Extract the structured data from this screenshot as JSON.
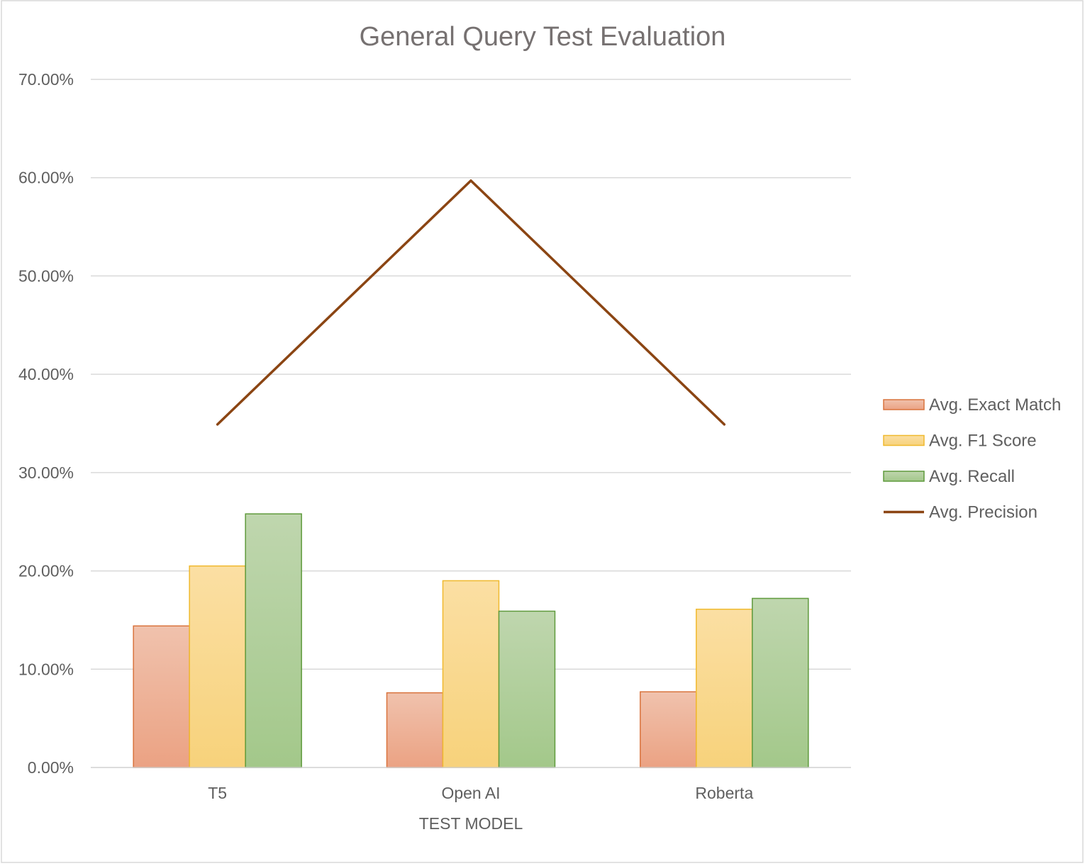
{
  "chart_data": {
    "type": "bar",
    "title": "General Query Test Evaluation",
    "xlabel": "TEST MODEL",
    "ylabel": "",
    "categories": [
      "T5",
      "Open AI",
      "Roberta"
    ],
    "ylim": [
      0,
      70
    ],
    "yticks": [
      0,
      10,
      20,
      30,
      40,
      50,
      60,
      70
    ],
    "ytick_labels": [
      "0.00%",
      "10.00%",
      "20.00%",
      "30.00%",
      "40.00%",
      "50.00%",
      "60.00%",
      "70.00%"
    ],
    "grid": true,
    "legend_position": "right",
    "series": [
      {
        "name": "Avg. Exact Match",
        "type": "bar",
        "values": [
          14.4,
          7.6,
          7.7
        ],
        "color": "#ED7D31"
      },
      {
        "name": "Avg. F1 Score",
        "type": "bar",
        "values": [
          20.5,
          19.0,
          16.1
        ],
        "color": "#FFC000"
      },
      {
        "name": "Avg. Recall",
        "type": "bar",
        "values": [
          25.8,
          15.9,
          17.2
        ],
        "color": "#70AD47"
      },
      {
        "name": "Avg. Precision",
        "type": "line",
        "values": [
          34.9,
          59.7,
          34.9
        ],
        "color": "#8B4513"
      }
    ]
  }
}
